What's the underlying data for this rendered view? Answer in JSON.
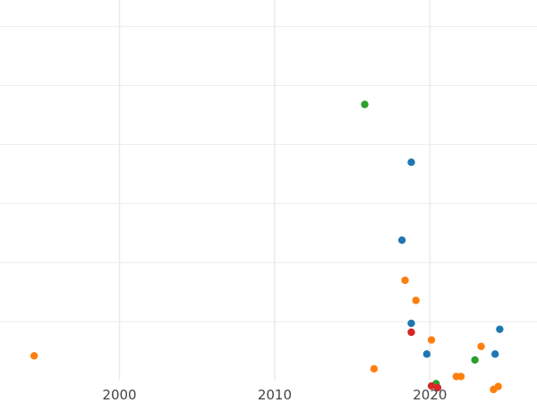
{
  "chart_data": {
    "type": "scatter",
    "title": "",
    "xlabel": "",
    "ylabel": "",
    "xlim": [
      1992.3,
      2026.9
    ],
    "ylim": [
      0,
      6.45
    ],
    "x_ticks": [
      2000,
      2010,
      2020
    ],
    "x_tick_labels": [
      "2000",
      "2010",
      "2020"
    ],
    "y_gridlines": [
      1,
      2,
      3,
      4,
      5,
      6
    ],
    "grid": true,
    "legend": "none",
    "series": [
      {
        "color": "#1f77b4",
        "points": [
          {
            "x": 2018.8,
            "y": 3.7
          },
          {
            "x": 2018.2,
            "y": 2.38
          },
          {
            "x": 2018.8,
            "y": 0.97
          },
          {
            "x": 2024.5,
            "y": 0.87
          },
          {
            "x": 2019.8,
            "y": 0.45
          },
          {
            "x": 2024.2,
            "y": 0.45
          }
        ]
      },
      {
        "color": "#ff7f0e",
        "points": [
          {
            "x": 1994.5,
            "y": 0.42
          },
          {
            "x": 2018.4,
            "y": 1.7
          },
          {
            "x": 2019.1,
            "y": 1.36
          },
          {
            "x": 2020.1,
            "y": 0.69
          },
          {
            "x": 2023.3,
            "y": 0.58
          },
          {
            "x": 2016.4,
            "y": 0.2
          },
          {
            "x": 2021.7,
            "y": 0.07
          },
          {
            "x": 2022.0,
            "y": 0.07
          },
          {
            "x": 2024.4,
            "y": -0.1
          },
          {
            "x": 2024.1,
            "y": -0.15
          }
        ]
      },
      {
        "color": "#2ca02c",
        "points": [
          {
            "x": 2015.8,
            "y": 4.68
          },
          {
            "x": 2022.9,
            "y": 0.35
          },
          {
            "x": 2020.4,
            "y": -0.05
          }
        ]
      },
      {
        "color": "#d62728",
        "points": [
          {
            "x": 2018.8,
            "y": 0.82
          },
          {
            "x": 2020.1,
            "y": -0.09
          },
          {
            "x": 2020.5,
            "y": -0.12
          }
        ]
      }
    ]
  }
}
